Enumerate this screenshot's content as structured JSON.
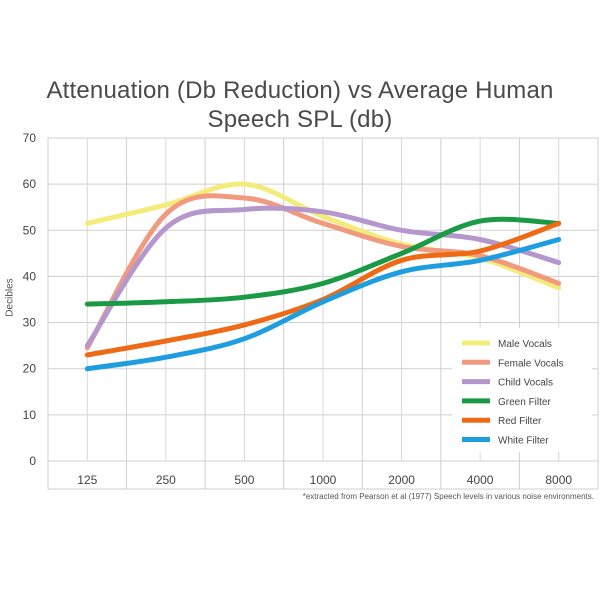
{
  "chart_data": {
    "type": "line",
    "title_lines": [
      "Attenuation (Db Reduction) vs Average Human",
      "Speech SPL (db)"
    ],
    "xlabel": "",
    "ylabel": "Decibles",
    "x": [
      "125",
      "250",
      "500",
      "1000",
      "2000",
      "4000",
      "8000"
    ],
    "y_ticks": [
      0,
      10,
      20,
      30,
      40,
      50,
      60,
      70
    ],
    "ylim": [
      0,
      70
    ],
    "grid": true,
    "legend_position": "bottom-right",
    "footnote": "*extracted from Pearson et al (1977) Speech levels in various noise environments.",
    "series": [
      {
        "name": "Male Vocals",
        "color": "#f3ec7a",
        "values": [
          51.5,
          55.5,
          60,
          53,
          47,
          44,
          37.5
        ]
      },
      {
        "name": "Female Vocals",
        "color": "#f29a80",
        "values": [
          24.5,
          53.5,
          57,
          51.5,
          46.5,
          44.5,
          38.5
        ]
      },
      {
        "name": "Child Vocals",
        "color": "#b597cd",
        "values": [
          25,
          50.5,
          54.5,
          54,
          50,
          48,
          43
        ]
      },
      {
        "name": "Green Filter",
        "color": "#1a9a45",
        "values": [
          34,
          34.5,
          35.5,
          38.5,
          45,
          52,
          51.5
        ]
      },
      {
        "name": "Red Filter",
        "color": "#ee6a15",
        "values": [
          23,
          26,
          29.5,
          35,
          43.5,
          45.5,
          51.5
        ]
      },
      {
        "name": "White Filter",
        "color": "#1e9ee0",
        "values": [
          20,
          22.5,
          26.5,
          34.5,
          41,
          43.5,
          48
        ]
      }
    ]
  }
}
